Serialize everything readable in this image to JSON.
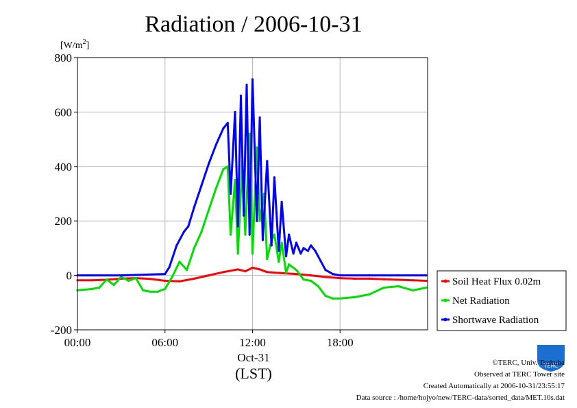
{
  "chart_data": {
    "type": "line",
    "title": "Radiation / 2006-10-31",
    "ylabel_unit": "[W/m",
    "ylabel_unit_sup": "2",
    "ylabel_unit_close": "]",
    "ylim": [
      -200,
      800
    ],
    "yticks": [
      -200,
      0,
      200,
      400,
      600,
      800
    ],
    "xlim": [
      0,
      24
    ],
    "xticks": [
      {
        "hour": 0,
        "label": "00:00"
      },
      {
        "hour": 6,
        "label": "06:00"
      },
      {
        "hour": 12,
        "label": "12:00"
      },
      {
        "hour": 18,
        "label": "18:00"
      }
    ],
    "xlabel_date": "Oct-31",
    "xlabel": "(LST)",
    "grid": true,
    "legend_placement": "right",
    "series": [
      {
        "name": "Soil Heat Flux 0.02m",
        "color": "#ff0000",
        "x": [
          0,
          1,
          2,
          3,
          4,
          5,
          6,
          7,
          8,
          9,
          10,
          11,
          11.5,
          12,
          12.5,
          13,
          14,
          15,
          16,
          17,
          18,
          19,
          20,
          21,
          22,
          23,
          23.9
        ],
        "y": [
          -18,
          -18,
          -16,
          -12,
          -10,
          -13,
          -20,
          -22,
          -12,
          0,
          12,
          22,
          15,
          28,
          22,
          12,
          8,
          5,
          0,
          -6,
          -10,
          -12,
          -12,
          -14,
          -16,
          -18,
          -20
        ]
      },
      {
        "name": "Net Radiation",
        "color": "#00e000",
        "x": [
          0,
          1,
          1.5,
          2,
          2.5,
          3,
          3.5,
          4,
          4.5,
          5,
          5.5,
          6,
          6.5,
          7,
          7.5,
          8,
          8.5,
          9,
          9.5,
          10,
          10.3,
          10.5,
          10.8,
          11,
          11.3,
          11.5,
          11.8,
          12,
          12.3,
          12.5,
          12.8,
          13,
          13.3,
          13.5,
          13.8,
          14,
          14.3,
          14.5,
          15,
          15.5,
          16,
          16.5,
          17,
          17.5,
          18,
          19,
          20,
          21,
          22,
          23,
          23.9
        ],
        "y": [
          -55,
          -50,
          -45,
          -15,
          -35,
          -5,
          -20,
          -10,
          -55,
          -60,
          -60,
          -50,
          -5,
          50,
          20,
          100,
          160,
          240,
          320,
          390,
          400,
          150,
          350,
          80,
          420,
          150,
          520,
          80,
          470,
          200,
          300,
          60,
          130,
          150,
          50,
          120,
          10,
          40,
          20,
          -15,
          -20,
          -40,
          -75,
          -85,
          -85,
          -80,
          -70,
          -45,
          -40,
          -55,
          -45
        ]
      },
      {
        "name": "Shortwave Radiation",
        "color": "#0000ff",
        "x": [
          0,
          3,
          6,
          6.3,
          6.8,
          7.3,
          7.6,
          8,
          8.5,
          9,
          9.5,
          10,
          10.3,
          10.5,
          10.8,
          11,
          11.2,
          11.4,
          11.6,
          11.8,
          12,
          12.3,
          12.5,
          12.7,
          13,
          13.3,
          13.5,
          13.8,
          14,
          14.3,
          14.5,
          14.8,
          15,
          15.3,
          15.5,
          15.8,
          16,
          16.3,
          16.5,
          17,
          17.5,
          18,
          20,
          22,
          23.9
        ],
        "y": [
          0,
          0,
          5,
          30,
          110,
          160,
          180,
          250,
          330,
          410,
          480,
          540,
          560,
          300,
          600,
          180,
          660,
          220,
          700,
          150,
          720,
          200,
          580,
          130,
          420,
          110,
          360,
          90,
          270,
          70,
          150,
          80,
          120,
          80,
          100,
          90,
          110,
          90,
          70,
          20,
          5,
          0,
          0,
          0,
          0
        ]
      }
    ]
  },
  "footer": {
    "logo_text": "TERC",
    "copyright": "©TERC, Univ. Tsukuba",
    "site": "Observed at TERC Tower site",
    "created": "Created Automatically at 2006-10-31/23:55:17",
    "source": "Data source : /home/hojyo/new/TERC-data/sorted_data/MET.10s.dat"
  }
}
